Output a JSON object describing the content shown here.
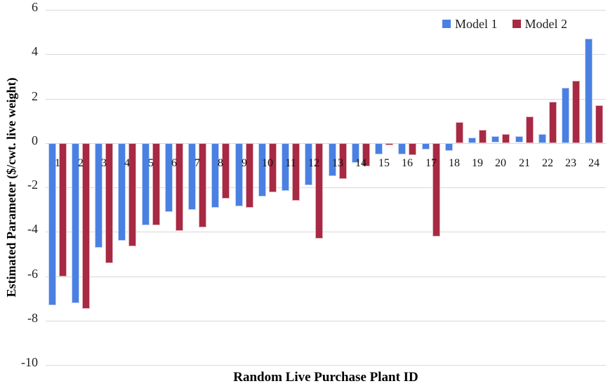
{
  "chart_data": {
    "type": "bar",
    "xlabel": "Random Live Purchase Plant ID",
    "ylabel": "Estimated Parameter ($/cwt. live weight)",
    "categories": [
      1,
      2,
      3,
      4,
      5,
      6,
      7,
      8,
      9,
      10,
      11,
      12,
      13,
      14,
      15,
      16,
      17,
      18,
      19,
      20,
      21,
      22,
      23,
      24
    ],
    "series": [
      {
        "name": "Model 1",
        "color": "#4A80E2",
        "values": [
          -7.3,
          -7.2,
          -4.7,
          -4.4,
          -3.7,
          -3.1,
          -3.0,
          -2.9,
          -2.85,
          -2.4,
          -2.15,
          -1.9,
          -1.5,
          -0.9,
          -0.5,
          -0.5,
          -0.3,
          -0.35,
          0.25,
          0.3,
          0.3,
          0.4,
          2.5,
          4.7
        ]
      },
      {
        "name": "Model 2",
        "color": "#A82943",
        "values": [
          -6.0,
          -7.45,
          -5.4,
          -4.65,
          -3.7,
          -3.95,
          -3.8,
          -2.5,
          -2.9,
          -2.2,
          -2.6,
          -4.3,
          -1.6,
          -1.05,
          -0.1,
          -0.55,
          -4.2,
          0.95,
          0.6,
          0.4,
          1.2,
          1.85,
          2.8,
          1.7
        ]
      }
    ],
    "ylim": [
      -10,
      6
    ],
    "yticks": [
      6,
      4,
      2,
      0,
      -2,
      -4,
      -6,
      -8,
      -10
    ],
    "grid": true,
    "legend_position": "top-right",
    "gridline_color": "#D9D9D9",
    "background": "#FFFFFF"
  }
}
